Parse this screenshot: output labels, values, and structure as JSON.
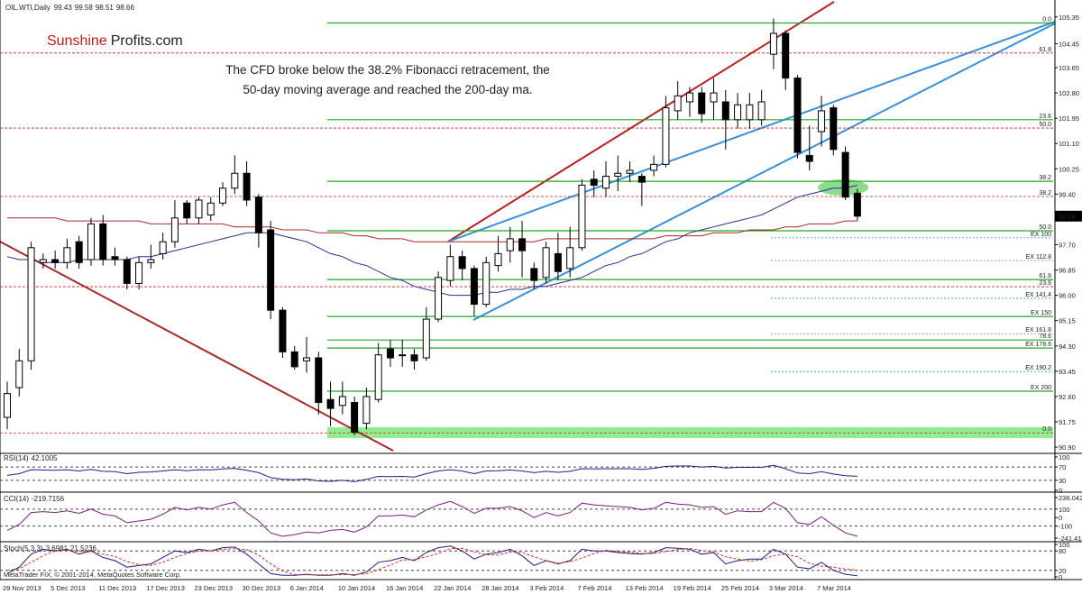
{
  "chart_data": [
    {
      "type": "candlestick",
      "title": "OIL.WTI,Daily",
      "brand_1": "Sunshine",
      "brand_2": "Profits.com",
      "annotation": [
        "The CFD broke below the 38.2% Fibonacci retracement, the",
        "50-day moving average and reached the 200-day ma."
      ],
      "footer": "MetaTrader FIX, © 2001-2014, MetaQuotes Software Corp.",
      "categories": [
        "29 Nov 2013",
        null,
        null,
        null,
        "5 Dec 2013",
        null,
        null,
        null,
        "11 Dec 2013",
        null,
        null,
        null,
        "17 Dec 2013",
        null,
        null,
        null,
        "23 Dec 2013",
        null,
        null,
        null,
        "30 Dec 2013",
        null,
        null,
        null,
        "6 Jan 2014",
        null,
        null,
        null,
        "10 Jan 2014",
        null,
        null,
        null,
        "16 Jan 2014",
        null,
        null,
        null,
        "22 Jan 2014",
        null,
        null,
        null,
        "28 Jan 2014",
        null,
        null,
        null,
        "3 Feb 2014",
        null,
        null,
        null,
        "7 Feb 2014",
        null,
        null,
        null,
        "13 Feb 2014",
        null,
        null,
        null,
        "19 Feb 2014",
        null,
        null,
        null,
        "25 Feb 2014",
        null,
        null,
        null,
        "3 Mar 2014",
        null,
        null,
        null,
        "7 Mar 2014",
        null,
        null,
        null
      ],
      "open": [
        91.9,
        92.9,
        93.8,
        97.1,
        97.2,
        97.1,
        97.8,
        97.2,
        98.4,
        97.3,
        97.2,
        96.4,
        97.1,
        97.4,
        97.8,
        99.1,
        98.6,
        98.7,
        99.1,
        99.6,
        100.1,
        99.3,
        98.2,
        95.5,
        94.1,
        93.8,
        93.9,
        92.5,
        92.3,
        92.4,
        91.7,
        92.5,
        94.2,
        94.0,
        94.0,
        93.9,
        95.2,
        96.5,
        97.3,
        96.9,
        95.7,
        97.0,
        97.5,
        97.9,
        96.9,
        96.6,
        97.4,
        96.9,
        97.6,
        99.9,
        99.6,
        100.0,
        100.1,
        100.0,
        100.2,
        100.4,
        102.2,
        102.5,
        102.8,
        102.5,
        102.5,
        101.9,
        101.9,
        101.9,
        104.1,
        104.8,
        103.3,
        100.7,
        101.5,
        102.3,
        100.8,
        99.43
      ],
      "high": [
        93.1,
        94.2,
        97.8,
        97.4,
        97.5,
        97.9,
        98.0,
        98.6,
        98.7,
        97.6,
        97.3,
        97.3,
        97.7,
        98.1,
        99.2,
        99.2,
        99.3,
        99.3,
        99.8,
        100.7,
        100.5,
        99.4,
        98.5,
        95.6,
        94.3,
        94.6,
        94.1,
        93.1,
        93.1,
        92.6,
        92.9,
        94.4,
        94.5,
        94.5,
        94.2,
        95.6,
        96.8,
        97.7,
        97.5,
        97.0,
        97.3,
        98.0,
        98.3,
        98.5,
        97.1,
        97.8,
        98.1,
        98.3,
        99.9,
        100.2,
        100.5,
        100.7,
        100.5,
        100.1,
        100.7,
        102.7,
        103.2,
        103.0,
        103.0,
        103.3,
        102.9,
        102.8,
        102.8,
        102.9,
        105.3,
        104.9,
        103.4,
        101.7,
        102.7,
        102.4,
        101.0,
        99.58
      ],
      "low": [
        91.5,
        92.6,
        93.5,
        96.9,
        96.9,
        96.9,
        96.9,
        97.0,
        97.0,
        97.0,
        96.2,
        96.2,
        96.9,
        97.2,
        97.6,
        98.4,
        98.4,
        98.5,
        99.0,
        99.4,
        99.0,
        97.6,
        95.2,
        93.9,
        93.5,
        93.4,
        92.0,
        91.6,
        92.0,
        91.3,
        91.5,
        92.4,
        93.6,
        93.6,
        93.5,
        93.8,
        95.1,
        96.3,
        96.5,
        95.3,
        95.6,
        96.8,
        97.1,
        96.6,
        96.2,
        96.4,
        96.5,
        96.6,
        97.5,
        99.3,
        99.3,
        99.5,
        99.8,
        99.0,
        100.0,
        100.3,
        101.9,
        102.0,
        101.8,
        101.9,
        100.9,
        101.6,
        101.6,
        101.7,
        103.6,
        102.9,
        100.6,
        100.2,
        101.0,
        100.7,
        99.2,
        98.51
      ],
      "close": [
        92.7,
        93.8,
        97.6,
        97.2,
        97.1,
        97.6,
        97.1,
        98.4,
        97.2,
        97.2,
        96.4,
        97.1,
        97.2,
        97.8,
        98.6,
        98.6,
        99.2,
        99.1,
        99.6,
        100.1,
        99.2,
        98.1,
        95.5,
        94.1,
        93.6,
        93.9,
        92.4,
        92.2,
        92.6,
        91.4,
        92.6,
        94.0,
        93.9,
        94.0,
        93.8,
        95.2,
        96.6,
        97.3,
        96.9,
        95.7,
        97.1,
        97.4,
        97.9,
        97.5,
        96.5,
        97.6,
        96.8,
        97.6,
        99.7,
        99.7,
        100.0,
        100.1,
        100.2,
        99.8,
        100.4,
        102.3,
        102.7,
        102.8,
        102.1,
        102.8,
        101.9,
        102.4,
        102.4,
        102.5,
        104.8,
        103.3,
        100.8,
        100.5,
        102.2,
        100.9,
        99.3,
        98.66
      ],
      "overlays": [
        {
          "color": "#2b2b8c",
          "values": [
            97.3,
            97.2,
            97.2,
            97.1,
            97.1,
            97.1,
            97.2,
            97.2,
            97.2,
            97.2,
            97.2,
            97.3,
            97.3,
            97.4,
            97.5,
            97.6,
            97.7,
            97.8,
            97.9,
            98.0,
            98.1,
            98.1,
            98.1,
            98.0,
            97.9,
            97.8,
            97.6,
            97.4,
            97.3,
            97.1,
            97.0,
            96.8,
            96.6,
            96.5,
            96.3,
            96.2,
            96.1,
            96.0,
            96.0,
            96.0,
            96.1,
            96.1,
            96.2,
            96.2,
            96.3,
            96.3,
            96.4,
            96.5,
            96.6,
            96.8,
            97.0,
            97.1,
            97.3,
            97.4,
            97.6,
            97.8,
            97.9,
            98.1,
            98.2,
            98.3,
            98.4,
            98.5,
            98.6,
            98.7,
            98.9,
            99.1,
            99.3,
            99.4,
            99.5,
            99.6,
            99.6,
            99.7
          ]
        },
        {
          "color": "#a52a2a",
          "values": [
            98.6,
            98.6,
            98.6,
            98.6,
            98.6,
            98.5,
            98.5,
            98.5,
            98.5,
            98.5,
            98.5,
            98.5,
            98.4,
            98.4,
            98.4,
            98.4,
            98.4,
            98.4,
            98.4,
            98.3,
            98.3,
            98.3,
            98.3,
            98.2,
            98.2,
            98.2,
            98.1,
            98.1,
            98.1,
            98.0,
            98.0,
            97.9,
            97.9,
            97.9,
            97.8,
            97.8,
            97.8,
            97.8,
            97.8,
            97.8,
            97.8,
            97.8,
            97.8,
            97.8,
            97.8,
            97.9,
            97.9,
            97.9,
            97.9,
            97.9,
            97.9,
            97.9,
            97.9,
            97.9,
            97.9,
            98.0,
            98.0,
            98.0,
            98.0,
            98.1,
            98.1,
            98.1,
            98.2,
            98.2,
            98.2,
            98.3,
            98.3,
            98.4,
            98.4,
            98.4,
            98.5,
            98.5
          ]
        }
      ],
      "levels": [
        {
          "label": "0.0",
          "value": 105.15,
          "kind": "retracement"
        },
        {
          "label": "61.8",
          "value": 104.14,
          "kind": "reverse"
        },
        {
          "label": "23.6",
          "value": 101.9,
          "kind": "retracement"
        },
        {
          "label": "50.0",
          "value": 101.62,
          "kind": "reverse"
        },
        {
          "label": "38.2",
          "value": 99.83,
          "kind": "retracement"
        },
        {
          "label": "38.2",
          "value": 99.32,
          "kind": "reverse"
        },
        {
          "label": "50.0",
          "value": 98.17,
          "kind": "retracement"
        },
        {
          "label": "EX 100",
          "value": 97.93,
          "kind": "expansion"
        },
        {
          "label": "EX 112.8",
          "value": 97.17,
          "kind": "expansion"
        },
        {
          "label": "61.8",
          "value": 96.53,
          "kind": "retracement"
        },
        {
          "label": "23.6",
          "value": 96.29,
          "kind": "reverse"
        },
        {
          "label": "EX 141.4",
          "value": 95.9,
          "kind": "expansion"
        },
        {
          "label": "EX 150",
          "value": 95.29,
          "kind": "retracement"
        },
        {
          "label": "EX 161.8",
          "value": 94.71,
          "kind": "expansion"
        },
        {
          "label": "78.6",
          "value": 94.5,
          "kind": "retracement"
        },
        {
          "label": "EX 178.6",
          "value": 94.23,
          "kind": "retracement"
        },
        {
          "label": "EX 190.2",
          "value": 93.44,
          "kind": "expansion"
        },
        {
          "label": "EX 200",
          "value": 92.78,
          "kind": "retracement"
        },
        {
          "label": "0.0",
          "value": 91.38,
          "kind": "reverse"
        }
      ],
      "ylim": [
        90.69,
        105.77
      ],
      "yticks": [
        105.35,
        104.45,
        103.65,
        {
          "value": 102.8,
          "label": "102.80"
        },
        101.95,
        {
          "value": 101.1,
          "label": "101.10"
        },
        100.25,
        {
          "value": 99.4,
          "label": "99.40"
        },
        {
          "value": 97.7,
          "label": "97.70"
        },
        96.85,
        {
          "value": 96.0,
          "label": "96.00"
        },
        95.15,
        {
          "value": 94.3,
          "label": "94.30"
        },
        93.45,
        {
          "value": 92.6,
          "label": "92.60"
        },
        91.75,
        {
          "value": 90.9,
          "label": "90.90"
        }
      ]
    },
    {
      "type": "line",
      "title": "RSI(14)",
      "ylim": [
        0,
        100
      ],
      "yticks": [
        100,
        70,
        30,
        0
      ],
      "series": [
        {
          "color": "#1f1f7a",
          "values": [
            45,
            50,
            62,
            61,
            60,
            62,
            58,
            63,
            57,
            56,
            50,
            54,
            55,
            58,
            62,
            59,
            62,
            61,
            64,
            66,
            60,
            53,
            38,
            33,
            32,
            34,
            28,
            27,
            30,
            26,
            33,
            42,
            41,
            42,
            40,
            50,
            58,
            62,
            58,
            50,
            58,
            59,
            61,
            58,
            53,
            57,
            54,
            57,
            65,
            64,
            65,
            65,
            65,
            63,
            66,
            72,
            73,
            73,
            70,
            72,
            67,
            69,
            69,
            69,
            75,
            65,
            52,
            50,
            56,
            49,
            44,
            42.1005
          ]
        }
      ]
    },
    {
      "type": "line",
      "title": "CCI(14)",
      "ylim": [
        -241.418,
        236.0426
      ],
      "yticks": [
        236.0426,
        100,
        0,
        -100,
        -241.418
      ],
      "series": [
        {
          "color": "#7a1f7a",
          "values": [
            -150,
            -80,
            60,
            70,
            60,
            80,
            50,
            100,
            40,
            20,
            -60,
            -40,
            -20,
            40,
            120,
            90,
            120,
            100,
            150,
            180,
            60,
            -40,
            -180,
            -220,
            -200,
            -170,
            -180,
            -150,
            -140,
            -170,
            -110,
            20,
            20,
            30,
            10,
            90,
            150,
            190,
            130,
            50,
            110,
            110,
            130,
            80,
            0,
            60,
            20,
            60,
            170,
            150,
            140,
            130,
            120,
            90,
            110,
            180,
            160,
            150,
            120,
            130,
            40,
            80,
            70,
            70,
            180,
            110,
            -60,
            -80,
            10,
            -90,
            -180,
            -219.7156
          ]
        }
      ]
    },
    {
      "type": "line",
      "title": "Stoch(5,3,3)",
      "ylim": [
        0,
        100
      ],
      "yticks": [
        100,
        80,
        20,
        0
      ],
      "series": [
        {
          "color": "#1f1f7a",
          "dashed": false,
          "values": [
            10,
            30,
            70,
            85,
            80,
            85,
            70,
            80,
            60,
            50,
            30,
            35,
            40,
            60,
            80,
            75,
            85,
            80,
            90,
            92,
            70,
            40,
            10,
            5,
            5,
            8,
            5,
            5,
            10,
            5,
            15,
            45,
            50,
            60,
            50,
            75,
            90,
            95,
            80,
            55,
            70,
            75,
            85,
            65,
            35,
            50,
            40,
            50,
            85,
            80,
            80,
            75,
            72,
            70,
            75,
            90,
            88,
            85,
            70,
            75,
            40,
            50,
            55,
            55,
            85,
            70,
            30,
            25,
            45,
            20,
            8,
            3.6981
          ]
        },
        {
          "color": "#d03030",
          "dashed": true,
          "values": [
            20,
            25,
            45,
            65,
            80,
            83,
            78,
            78,
            70,
            63,
            47,
            38,
            35,
            45,
            60,
            72,
            80,
            80,
            85,
            87,
            84,
            67,
            40,
            18,
            7,
            6,
            6,
            6,
            7,
            7,
            10,
            22,
            37,
            52,
            53,
            62,
            72,
            87,
            88,
            77,
            68,
            67,
            77,
            75,
            62,
            50,
            42,
            47,
            58,
            72,
            82,
            78,
            76,
            72,
            72,
            78,
            84,
            88,
            81,
            77,
            62,
            55,
            48,
            53,
            65,
            70,
            62,
            42,
            33,
            30,
            24,
            21.5236
          ]
        }
      ]
    }
  ]
}
